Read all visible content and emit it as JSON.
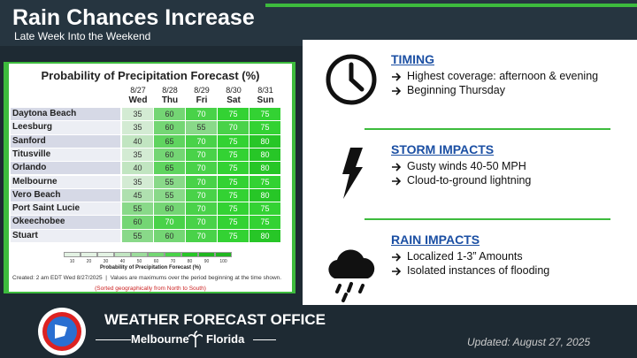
{
  "header": {
    "title": "Rain Chances Increase",
    "subtitle": "Late Week Into the Weekend"
  },
  "table": {
    "title": "Probability of Precipitation Forecast (%)",
    "dates": [
      "8/27",
      "8/28",
      "8/29",
      "8/30",
      "8/31"
    ],
    "days": [
      "Wed",
      "Thu",
      "Fri",
      "Sat",
      "Sun"
    ],
    "rows": [
      {
        "city": "Daytona Beach",
        "values": [
          35,
          60,
          70,
          75,
          75
        ]
      },
      {
        "city": "Leesburg",
        "values": [
          35,
          60,
          55,
          70,
          75
        ]
      },
      {
        "city": "Sanford",
        "values": [
          40,
          65,
          70,
          75,
          80
        ]
      },
      {
        "city": "Titusville",
        "values": [
          35,
          60,
          70,
          75,
          80
        ]
      },
      {
        "city": "Orlando",
        "values": [
          40,
          65,
          70,
          75,
          80
        ]
      },
      {
        "city": "Melbourne",
        "values": [
          35,
          55,
          70,
          75,
          75
        ]
      },
      {
        "city": "Vero Beach",
        "values": [
          45,
          55,
          70,
          75,
          80
        ]
      },
      {
        "city": "Port Saint Lucie",
        "values": [
          55,
          60,
          70,
          75,
          75
        ]
      },
      {
        "city": "Okeechobee",
        "values": [
          60,
          70,
          70,
          75,
          75
        ]
      },
      {
        "city": "Stuart",
        "values": [
          55,
          60,
          70,
          75,
          80
        ]
      }
    ],
    "scale_ticks": [
      10,
      20,
      30,
      40,
      50,
      60,
      70,
      80,
      90,
      100
    ],
    "scale_label": "Probability of Precipitation Forecast (%)",
    "footnote": "Created: 2 am EDT Wed 8/27/2025  |  Values are maximums over the period beginning at the time shown.",
    "sort_note": "(Sorted geographically from North to South)"
  },
  "sections": [
    {
      "heading": "TIMING",
      "bullets": [
        "Highest coverage: afternoon & evening",
        "Beginning Thursday"
      ]
    },
    {
      "heading": "STORM IMPACTS",
      "bullets": [
        "Gusty winds 40-50 MPH",
        "Cloud-to-ground lightning"
      ]
    },
    {
      "heading": "RAIN IMPACTS",
      "bullets": [
        "Localized 1-3” Amounts",
        "Isolated instances of flooding"
      ]
    }
  ],
  "footer": {
    "office": "WEATHER FORECAST OFFICE",
    "city": "Melbourne",
    "state": "Florida",
    "updated": "Updated: August 27, 2025"
  }
}
